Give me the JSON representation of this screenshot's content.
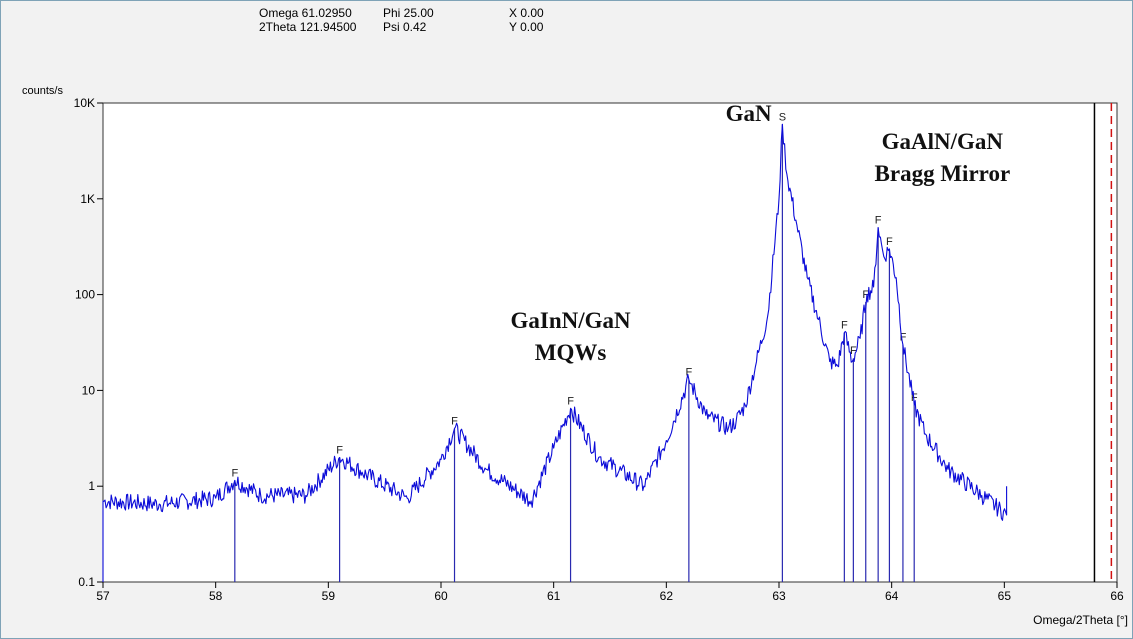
{
  "readout": {
    "omega": "Omega 61.02950",
    "two_theta": "2Theta 121.94500",
    "phi": "Phi 25.00",
    "psi": "Psi 0.42",
    "x": "X 0.00",
    "y": "Y 0.00"
  },
  "colors": {
    "trace": "#0b0bd8",
    "peak_markers": "#2a2ab0",
    "background": "#f2f2f2",
    "plot_area": "#ffffff",
    "cursor_solid": "#000000",
    "cursor_dashed": "#d11111"
  },
  "chart_data": {
    "type": "line",
    "title": "",
    "xlabel": "Omega/2Theta [°]",
    "ylabel": "counts/s",
    "xlim": [
      57,
      66
    ],
    "ylim": [
      0.1,
      10000
    ],
    "yscale": "log",
    "grid": false,
    "x_ticks": [
      57,
      58,
      59,
      60,
      61,
      62,
      63,
      64,
      65,
      66
    ],
    "y_ticks": [
      {
        "value": 0.1,
        "label": "0.1"
      },
      {
        "value": 1,
        "label": "1"
      },
      {
        "value": 10,
        "label": "10"
      },
      {
        "value": 100,
        "label": "100"
      },
      {
        "value": 1000,
        "label": "1K"
      },
      {
        "value": 10000,
        "label": "10K"
      }
    ],
    "series": [
      {
        "points": [
          [
            57.0,
            0.1
          ],
          [
            57.0,
            0.7
          ],
          [
            57.5,
            0.65
          ],
          [
            58.0,
            0.75
          ],
          [
            58.17,
            1.15
          ],
          [
            58.4,
            0.8
          ],
          [
            58.8,
            0.8
          ],
          [
            59.1,
            2.0
          ],
          [
            59.3,
            1.4
          ],
          [
            59.7,
            0.75
          ],
          [
            60.0,
            1.9
          ],
          [
            60.12,
            4.0
          ],
          [
            60.4,
            1.5
          ],
          [
            60.8,
            0.7
          ],
          [
            61.0,
            2.5
          ],
          [
            61.15,
            6.5
          ],
          [
            61.4,
            2.0
          ],
          [
            61.8,
            1.0
          ],
          [
            62.0,
            3.0
          ],
          [
            62.2,
            13.0
          ],
          [
            62.35,
            5.5
          ],
          [
            62.55,
            4.0
          ],
          [
            62.62,
            4.8
          ],
          [
            62.7,
            7.0
          ],
          [
            62.8,
            20.0
          ],
          [
            62.9,
            60.0
          ],
          [
            63.0,
            1000.0
          ],
          [
            63.03,
            6000.0
          ],
          [
            63.07,
            1800.0
          ],
          [
            63.15,
            600.0
          ],
          [
            63.25,
            150.0
          ],
          [
            63.35,
            55.0
          ],
          [
            63.45,
            20.0
          ],
          [
            63.52,
            18.0
          ],
          [
            63.58,
            40.0
          ],
          [
            63.65,
            20.0
          ],
          [
            63.72,
            35.0
          ],
          [
            63.78,
            100.0
          ],
          [
            63.84,
            120.0
          ],
          [
            63.88,
            500.0
          ],
          [
            63.93,
            250.0
          ],
          [
            63.98,
            300.0
          ],
          [
            64.04,
            150.0
          ],
          [
            64.1,
            30.0
          ],
          [
            64.2,
            7.0
          ],
          [
            64.3,
            3.5
          ],
          [
            64.5,
            1.5
          ],
          [
            64.8,
            0.8
          ],
          [
            65.02,
            0.5
          ],
          [
            65.02,
            1.0
          ]
        ]
      }
    ],
    "peak_markers": [
      {
        "x": 58.17,
        "label": "F"
      },
      {
        "x": 59.1,
        "label": "F"
      },
      {
        "x": 60.12,
        "label": "F"
      },
      {
        "x": 61.15,
        "label": "F"
      },
      {
        "x": 62.2,
        "label": "F"
      },
      {
        "x": 63.03,
        "label": "S"
      },
      {
        "x": 63.58,
        "label": "F"
      },
      {
        "x": 63.66,
        "label": "F"
      },
      {
        "x": 63.77,
        "label": "F"
      },
      {
        "x": 63.88,
        "label": "F"
      },
      {
        "x": 63.98,
        "label": "F"
      },
      {
        "x": 64.1,
        "label": "F"
      },
      {
        "x": 64.2,
        "label": "F"
      }
    ],
    "annotations": [
      {
        "lines": [
          "GaN"
        ],
        "x": 62.73,
        "y": 6500
      },
      {
        "lines": [
          "GaAlN/GaN",
          "Bragg Mirror"
        ],
        "x": 64.45,
        "y": 3300
      },
      {
        "lines": [
          "GaInN/GaN",
          "MQWs"
        ],
        "x": 61.15,
        "y": 45
      }
    ],
    "cursors": [
      {
        "x": 65.8,
        "style": "solid"
      },
      {
        "x": 65.95,
        "style": "dashed"
      }
    ]
  }
}
